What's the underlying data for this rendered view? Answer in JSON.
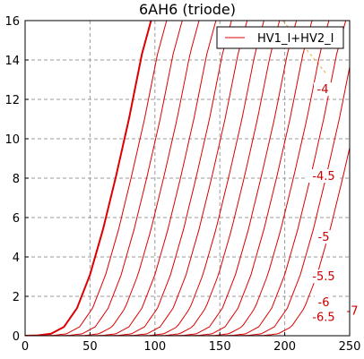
{
  "chart_data": {
    "type": "line",
    "title": "6AH6 (triode)",
    "xlabel": "",
    "ylabel": "",
    "xlim": [
      0,
      250
    ],
    "ylim": [
      0,
      16
    ],
    "xticks": [
      "0",
      "50",
      "100",
      "150",
      "200",
      "250"
    ],
    "yticks": [
      "0",
      "2",
      "4",
      "6",
      "8",
      "10",
      "12",
      "14",
      "16"
    ],
    "grid": true,
    "legend": {
      "position": "top-right",
      "entries": [
        "HV1_I+HV2_I"
      ]
    },
    "colors": {
      "curve": "#dd0000",
      "grid": "#9a9a9a",
      "reference": "#e8a640"
    },
    "curve_labels": [
      "-4",
      "-4.5",
      "-5",
      "-5.5",
      "-6",
      "-6.5",
      "-7"
    ],
    "series": [
      {
        "grid_v": 0,
        "x": [
          0,
          10,
          20,
          30,
          40,
          50,
          60,
          70,
          80,
          90,
          97
        ],
        "y": [
          0,
          0.02,
          0.1,
          0.45,
          1.4,
          3.1,
          5.4,
          8.1,
          11.0,
          14.3,
          16
        ]
      },
      {
        "grid_v": -0.5,
        "offset": 12
      },
      {
        "grid_v": -1.0,
        "offset": 24
      },
      {
        "grid_v": -1.5,
        "offset": 37
      },
      {
        "grid_v": -2.0,
        "offset": 50
      },
      {
        "grid_v": -2.5,
        "offset": 62
      },
      {
        "grid_v": -3.0,
        "offset": 74
      },
      {
        "grid_v": -3.5,
        "offset": 87
      },
      {
        "grid_v": -4.0,
        "offset": 99,
        "label": "-4"
      },
      {
        "grid_v": -4.5,
        "offset": 112,
        "label": "-4.5"
      },
      {
        "grid_v": -5.0,
        "offset": 124,
        "label": "-5"
      },
      {
        "grid_v": -5.5,
        "offset": 137,
        "label": "-5.5"
      },
      {
        "grid_v": -6.0,
        "offset": 150,
        "label": "-6"
      },
      {
        "grid_v": -6.5,
        "offset": 162,
        "label": "-6.5"
      },
      {
        "grid_v": -7.0,
        "offset": 175,
        "label": "-7"
      }
    ]
  }
}
